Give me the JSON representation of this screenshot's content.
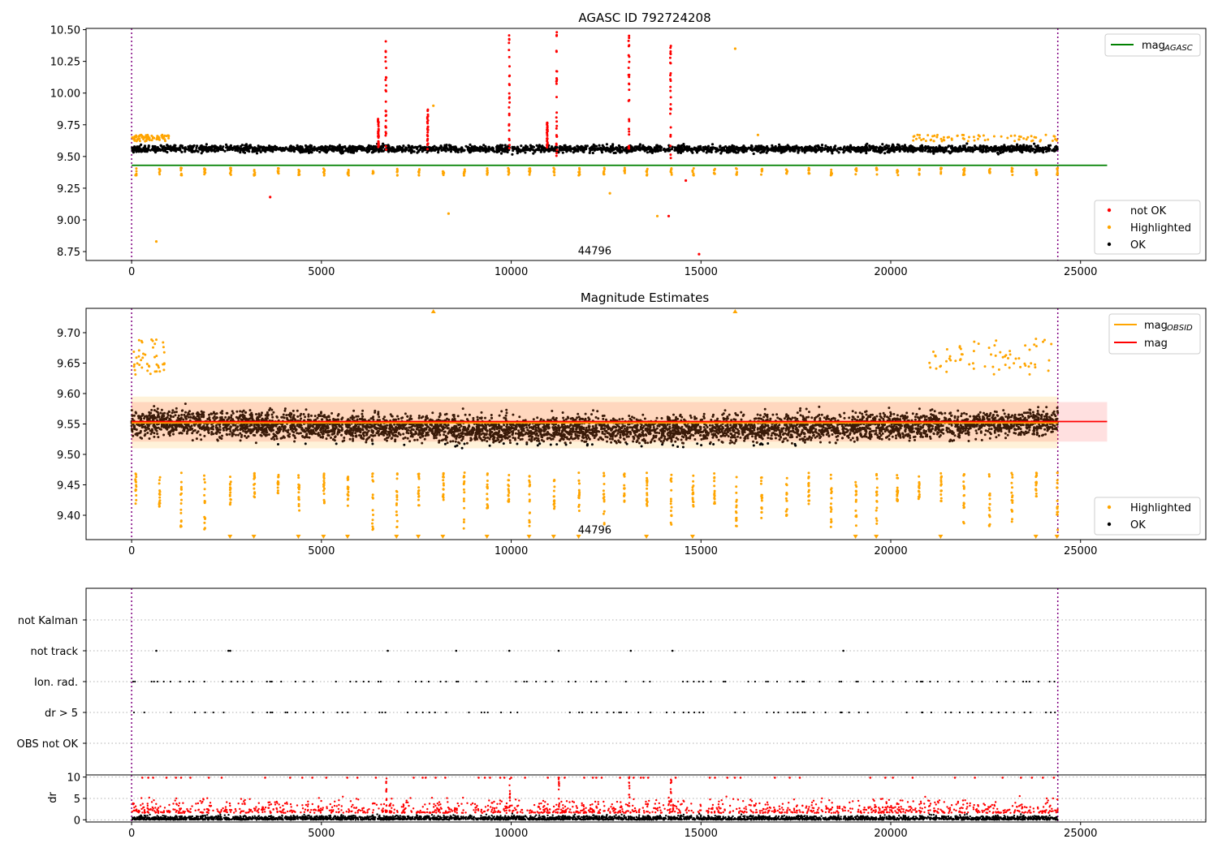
{
  "chart_data": [
    {
      "type": "scatter",
      "title": "AGASC ID 792724208",
      "xlabel": "",
      "ylabel": "",
      "xlim": [
        -1200,
        28300
      ],
      "ylim": [
        8.68,
        10.51
      ],
      "xticks": [
        "0",
        "5000",
        "10000",
        "15000",
        "20000",
        "25000"
      ],
      "yticks": [
        "8.75",
        "9.00",
        "9.25",
        "9.50",
        "9.75",
        "10.00",
        "10.25",
        "10.50"
      ],
      "grid": false,
      "vlines_x": [
        0,
        24400
      ],
      "annotation": {
        "text": "44796",
        "x": 12200,
        "y": 8.76
      },
      "hlines": [
        {
          "name": "mag_AGASC",
          "y": 9.43,
          "x_range": [
            0,
            25700
          ],
          "color": "#008000"
        }
      ],
      "legend_lines": [
        {
          "label_main": "mag",
          "label_sub": "AGASC",
          "color": "#008000"
        }
      ],
      "legend_points": [
        {
          "label": "not OK",
          "color": "#ff0000"
        },
        {
          "label": "Highlighted",
          "color": "#ffa500"
        },
        {
          "label": "OK",
          "color": "#000000"
        }
      ],
      "legend_placement": [
        "top-right",
        "bottom-right"
      ],
      "series": [
        {
          "name": "OK",
          "color": "#000000",
          "description": "dense band of points, x 0 to 24400",
          "center": 9.56,
          "spread": 0.05
        },
        {
          "name": "Highlighted",
          "color": "#ffa500",
          "description": "dips near 9.38 at roughly 45 epochs plus a few outliers",
          "dip_level": 9.38
        },
        {
          "name": "not OK",
          "color": "#ff0000",
          "description": "vertical columns of rejected points",
          "columns": [
            {
              "x": 6500,
              "y_min": 9.55,
              "y_max": 9.8
            },
            {
              "x": 6700,
              "y_min": 9.55,
              "y_max": 10.48
            },
            {
              "x": 7800,
              "y_min": 9.55,
              "y_max": 9.87
            },
            {
              "x": 9950,
              "y_min": 9.55,
              "y_max": 10.47
            },
            {
              "x": 10950,
              "y_min": 9.55,
              "y_max": 9.77
            },
            {
              "x": 11200,
              "y_min": 9.5,
              "y_max": 10.49
            },
            {
              "x": 13100,
              "y_min": 9.55,
              "y_max": 10.47
            },
            {
              "x": 14200,
              "y_min": 9.45,
              "y_max": 10.4
            }
          ],
          "outliers": [
            [
              3650,
              9.18
            ],
            [
              14150,
              9.03
            ],
            [
              14600,
              9.31
            ],
            [
              14950,
              8.73
            ]
          ]
        }
      ],
      "extra_highlighted_points": [
        [
          650,
          8.83
        ],
        [
          8350,
          9.05
        ],
        [
          12600,
          9.21
        ],
        [
          13850,
          9.03
        ],
        [
          15900,
          10.35
        ],
        [
          7950,
          9.9
        ],
        [
          16500,
          9.67
        ]
      ]
    },
    {
      "type": "scatter",
      "title": "Magnitude Estimates",
      "xlabel": "",
      "ylabel": "",
      "xlim": [
        -1200,
        28300
      ],
      "ylim": [
        9.36,
        9.74
      ],
      "xticks": [
        "0",
        "5000",
        "10000",
        "15000",
        "20000",
        "25000"
      ],
      "yticks": [
        "9.40",
        "9.45",
        "9.50",
        "9.55",
        "9.60",
        "9.65",
        "9.70"
      ],
      "grid": false,
      "vlines_x": [
        0,
        24400
      ],
      "annotation": {
        "text": "44796",
        "x": 12200,
        "y": 9.377
      },
      "hlines": [
        {
          "name": "mag_OBSID",
          "y": 9.552,
          "x_range": [
            0,
            24400
          ],
          "color": "#ffa500"
        },
        {
          "name": "mag",
          "y": 9.554,
          "x_range": [
            0,
            25700
          ],
          "color": "#ff0000"
        }
      ],
      "bands": [
        {
          "color": "#ff0000",
          "alpha": 0.12,
          "y": [
            9.521,
            9.586
          ],
          "x_range": [
            0,
            25700
          ]
        },
        {
          "color": "#ffa500",
          "alpha": 0.15,
          "y": [
            9.51,
            9.595
          ],
          "x_range": [
            0,
            24400
          ]
        }
      ],
      "legend_lines": [
        {
          "label_main": "mag",
          "label_sub": "OBSID",
          "color": "#ffa500"
        },
        {
          "label_main": "mag",
          "label_sub": "",
          "color": "#ff0000"
        }
      ],
      "legend_points": [
        {
          "label": "Highlighted",
          "color": "#ffa500"
        },
        {
          "label": "OK",
          "color": "#000000"
        }
      ],
      "legend_placement": [
        "top-right",
        "bottom-right"
      ],
      "series": [
        {
          "name": "OK",
          "color": "#000000",
          "description": "dense band, x 0 to 24400",
          "center": 9.553,
          "spread": 0.022
        },
        {
          "name": "Highlighted",
          "color": "#ffa500",
          "description": "vertical dips down to the axis floor at about 45 epochs; clipped points shown as triangles",
          "dip_level": 9.4
        }
      ]
    },
    {
      "type": "scatter",
      "title": "",
      "xlabel": "",
      "ylabel": "",
      "xlim": [
        -1200,
        28300
      ],
      "categories": [
        "not Kalman",
        "not track",
        "Ion. rad.",
        "dr > 5",
        "OBS not OK"
      ],
      "vlines_x": [
        0,
        24400
      ],
      "grid": "dotted horizontal",
      "series": [
        {
          "name": "not track",
          "color": "#000000",
          "x": [
            650,
            2550,
            2600,
            6750,
            8550,
            9950,
            11250,
            13150,
            14250,
            18750
          ]
        },
        {
          "name": "Ion. rad.",
          "color": "#000000",
          "description": "sparse flags along x 0 to 24400"
        },
        {
          "name": "dr > 5",
          "color": "#000000",
          "description": "sparse flags along x 0 to 24400"
        }
      ]
    },
    {
      "type": "scatter",
      "title": "",
      "xlabel": "",
      "ylabel": "dr",
      "xlim": [
        -1200,
        28300
      ],
      "ylim": [
        -0.5,
        10.5
      ],
      "xticks": [
        "0",
        "5000",
        "10000",
        "15000",
        "20000",
        "25000"
      ],
      "yticks": [
        "0",
        "5",
        "10"
      ],
      "grid": "dotted horizontal",
      "vlines_x": [
        0,
        24400
      ],
      "series": [
        {
          "name": "OK",
          "color": "#000000",
          "description": "dr values between 0 and about 2.5"
        },
        {
          "name": "not OK",
          "color": "#ff0000",
          "description": "dr values between 1.5 and 10, clipped at 10"
        }
      ]
    }
  ]
}
